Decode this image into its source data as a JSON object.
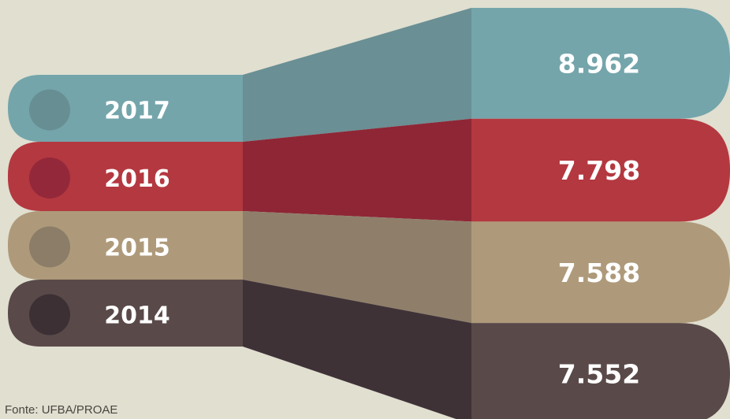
{
  "chart_data": {
    "type": "bar",
    "title": "",
    "categories": [
      "2017",
      "2016",
      "2015",
      "2014"
    ],
    "values": [
      8962,
      7798,
      7588,
      7552
    ],
    "value_labels": [
      "8.962",
      "7.798",
      "7.588",
      "7.552"
    ],
    "colors": {
      "2017": {
        "main": "#74a5ab",
        "dark": "#6a8f94",
        "dot": "#678e92"
      },
      "2016": {
        "main": "#b43840",
        "dark": "#8e2636",
        "dot": "#93283a"
      },
      "2015": {
        "main": "#ae9a7a",
        "dark": "#8f7f6a",
        "dot": "#8c7d68"
      },
      "2014": {
        "main": "#594a49",
        "dark": "#3f3237",
        "dot": "#3c3034"
      }
    }
  },
  "source": "Fonte: UFBA/PROAE",
  "background": "#e0dfd0"
}
